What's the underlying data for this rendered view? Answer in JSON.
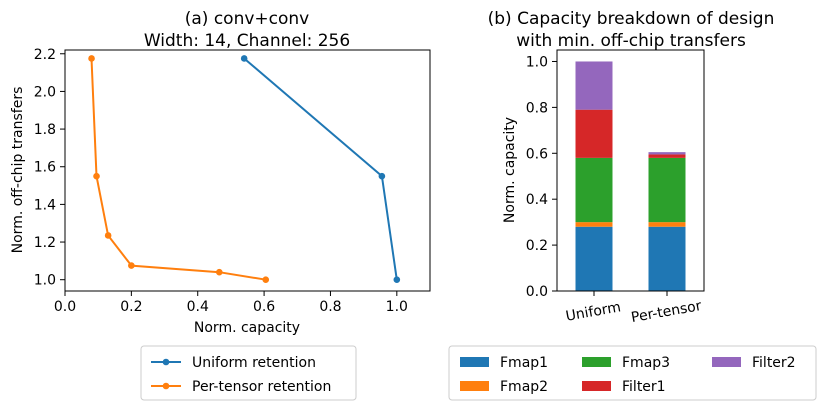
{
  "chart_data": [
    {
      "type": "line",
      "title": [
        "(a) conv+conv",
        "Width: 14, Channel: 256"
      ],
      "xlabel": "Norm. capacity",
      "ylabel": "Norm. off-chip transfers",
      "xlim": [
        0.0,
        1.1
      ],
      "ylim": [
        0.94,
        2.22
      ],
      "xticks": [
        0.0,
        0.2,
        0.4,
        0.6,
        0.8,
        1.0
      ],
      "xtick_labels": [
        "0.0",
        "0.2",
        "0.4",
        "0.6",
        "0.8",
        "1.0"
      ],
      "yticks": [
        1.0,
        1.2,
        1.4,
        1.6,
        1.8,
        2.0,
        2.2
      ],
      "ytick_labels": [
        "1.0",
        "1.2",
        "1.4",
        "1.6",
        "1.8",
        "2.0",
        "2.2"
      ],
      "series": [
        {
          "name": "Uniform retention",
          "color": "#1f77b4",
          "points": [
            [
              0.54,
              2.175
            ],
            [
              0.955,
              1.55
            ],
            [
              1.0,
              1.0
            ]
          ]
        },
        {
          "name": "Per-tensor retention",
          "color": "#ff7f0e",
          "points": [
            [
              0.08,
              2.175
            ],
            [
              0.095,
              1.55
            ],
            [
              0.13,
              1.235
            ],
            [
              0.2,
              1.075
            ],
            [
              0.465,
              1.04
            ],
            [
              0.605,
              1.0
            ]
          ]
        }
      ],
      "legend": {
        "placement": "below",
        "entries": [
          "Uniform retention",
          "Per-tensor retention"
        ]
      }
    },
    {
      "type": "bar",
      "stacked": true,
      "title": [
        "(b) Capacity breakdown of design",
        "with min. off-chip transfers"
      ],
      "xlabel": "",
      "ylabel": "Norm. capacity",
      "ylim": [
        0.0,
        1.05
      ],
      "yticks": [
        0.0,
        0.2,
        0.4,
        0.6,
        0.8,
        1.0
      ],
      "ytick_labels": [
        "0.0",
        "0.2",
        "0.4",
        "0.6",
        "0.8",
        "1.0"
      ],
      "categories": [
        "Uniform",
        "Per-tensor"
      ],
      "series": [
        {
          "name": "Fmap1",
          "color": "#1f77b4",
          "values": [
            0.28,
            0.28
          ]
        },
        {
          "name": "Fmap2",
          "color": "#ff7f0e",
          "values": [
            0.02,
            0.02
          ]
        },
        {
          "name": "Fmap3",
          "color": "#2ca02c",
          "values": [
            0.28,
            0.28
          ]
        },
        {
          "name": "Filter1",
          "color": "#d62728",
          "values": [
            0.21,
            0.015
          ]
        },
        {
          "name": "Filter2",
          "color": "#9467bd",
          "values": [
            0.21,
            0.01
          ]
        }
      ],
      "legend": {
        "placement": "below",
        "entries": [
          "Fmap1",
          "Fmap2",
          "Fmap3",
          "Filter1",
          "Filter2"
        ]
      }
    }
  ]
}
